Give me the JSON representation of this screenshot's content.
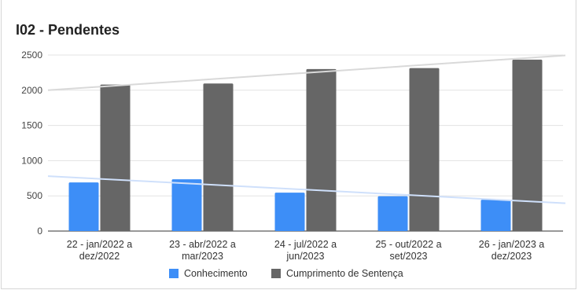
{
  "chart_data": {
    "type": "bar",
    "title": "I02 - Pendentes",
    "categories": [
      [
        "22 - jan/2022 a",
        "dez/2022"
      ],
      [
        "23 - abr/2022 a",
        "mar/2023"
      ],
      [
        "24 - jul/2022 a",
        "jun/2023"
      ],
      [
        "25 - out/2022 a",
        "set/2023"
      ],
      [
        "26 - jan/2023 a",
        "dez/2023"
      ]
    ],
    "series": [
      {
        "name": "Conhecimento",
        "color": "#3d8ef7",
        "values": [
          690,
          735,
          545,
          495,
          445
        ]
      },
      {
        "name": "Cumprimento de Sentença",
        "color": "#666666",
        "values": [
          2080,
          2095,
          2300,
          2315,
          2435
        ]
      }
    ],
    "trendlines": [
      {
        "series": "Conhecimento",
        "color": "#cfe0fb",
        "start": 780,
        "end": 395
      },
      {
        "series": "Cumprimento de Sentença",
        "color": "#d9d9d9",
        "start": 2000,
        "end": 2495
      }
    ],
    "yticks": [
      0,
      500,
      1000,
      1500,
      2000,
      2500
    ],
    "ylim": [
      0,
      2500
    ],
    "grid": true,
    "legend_position": "bottom"
  }
}
